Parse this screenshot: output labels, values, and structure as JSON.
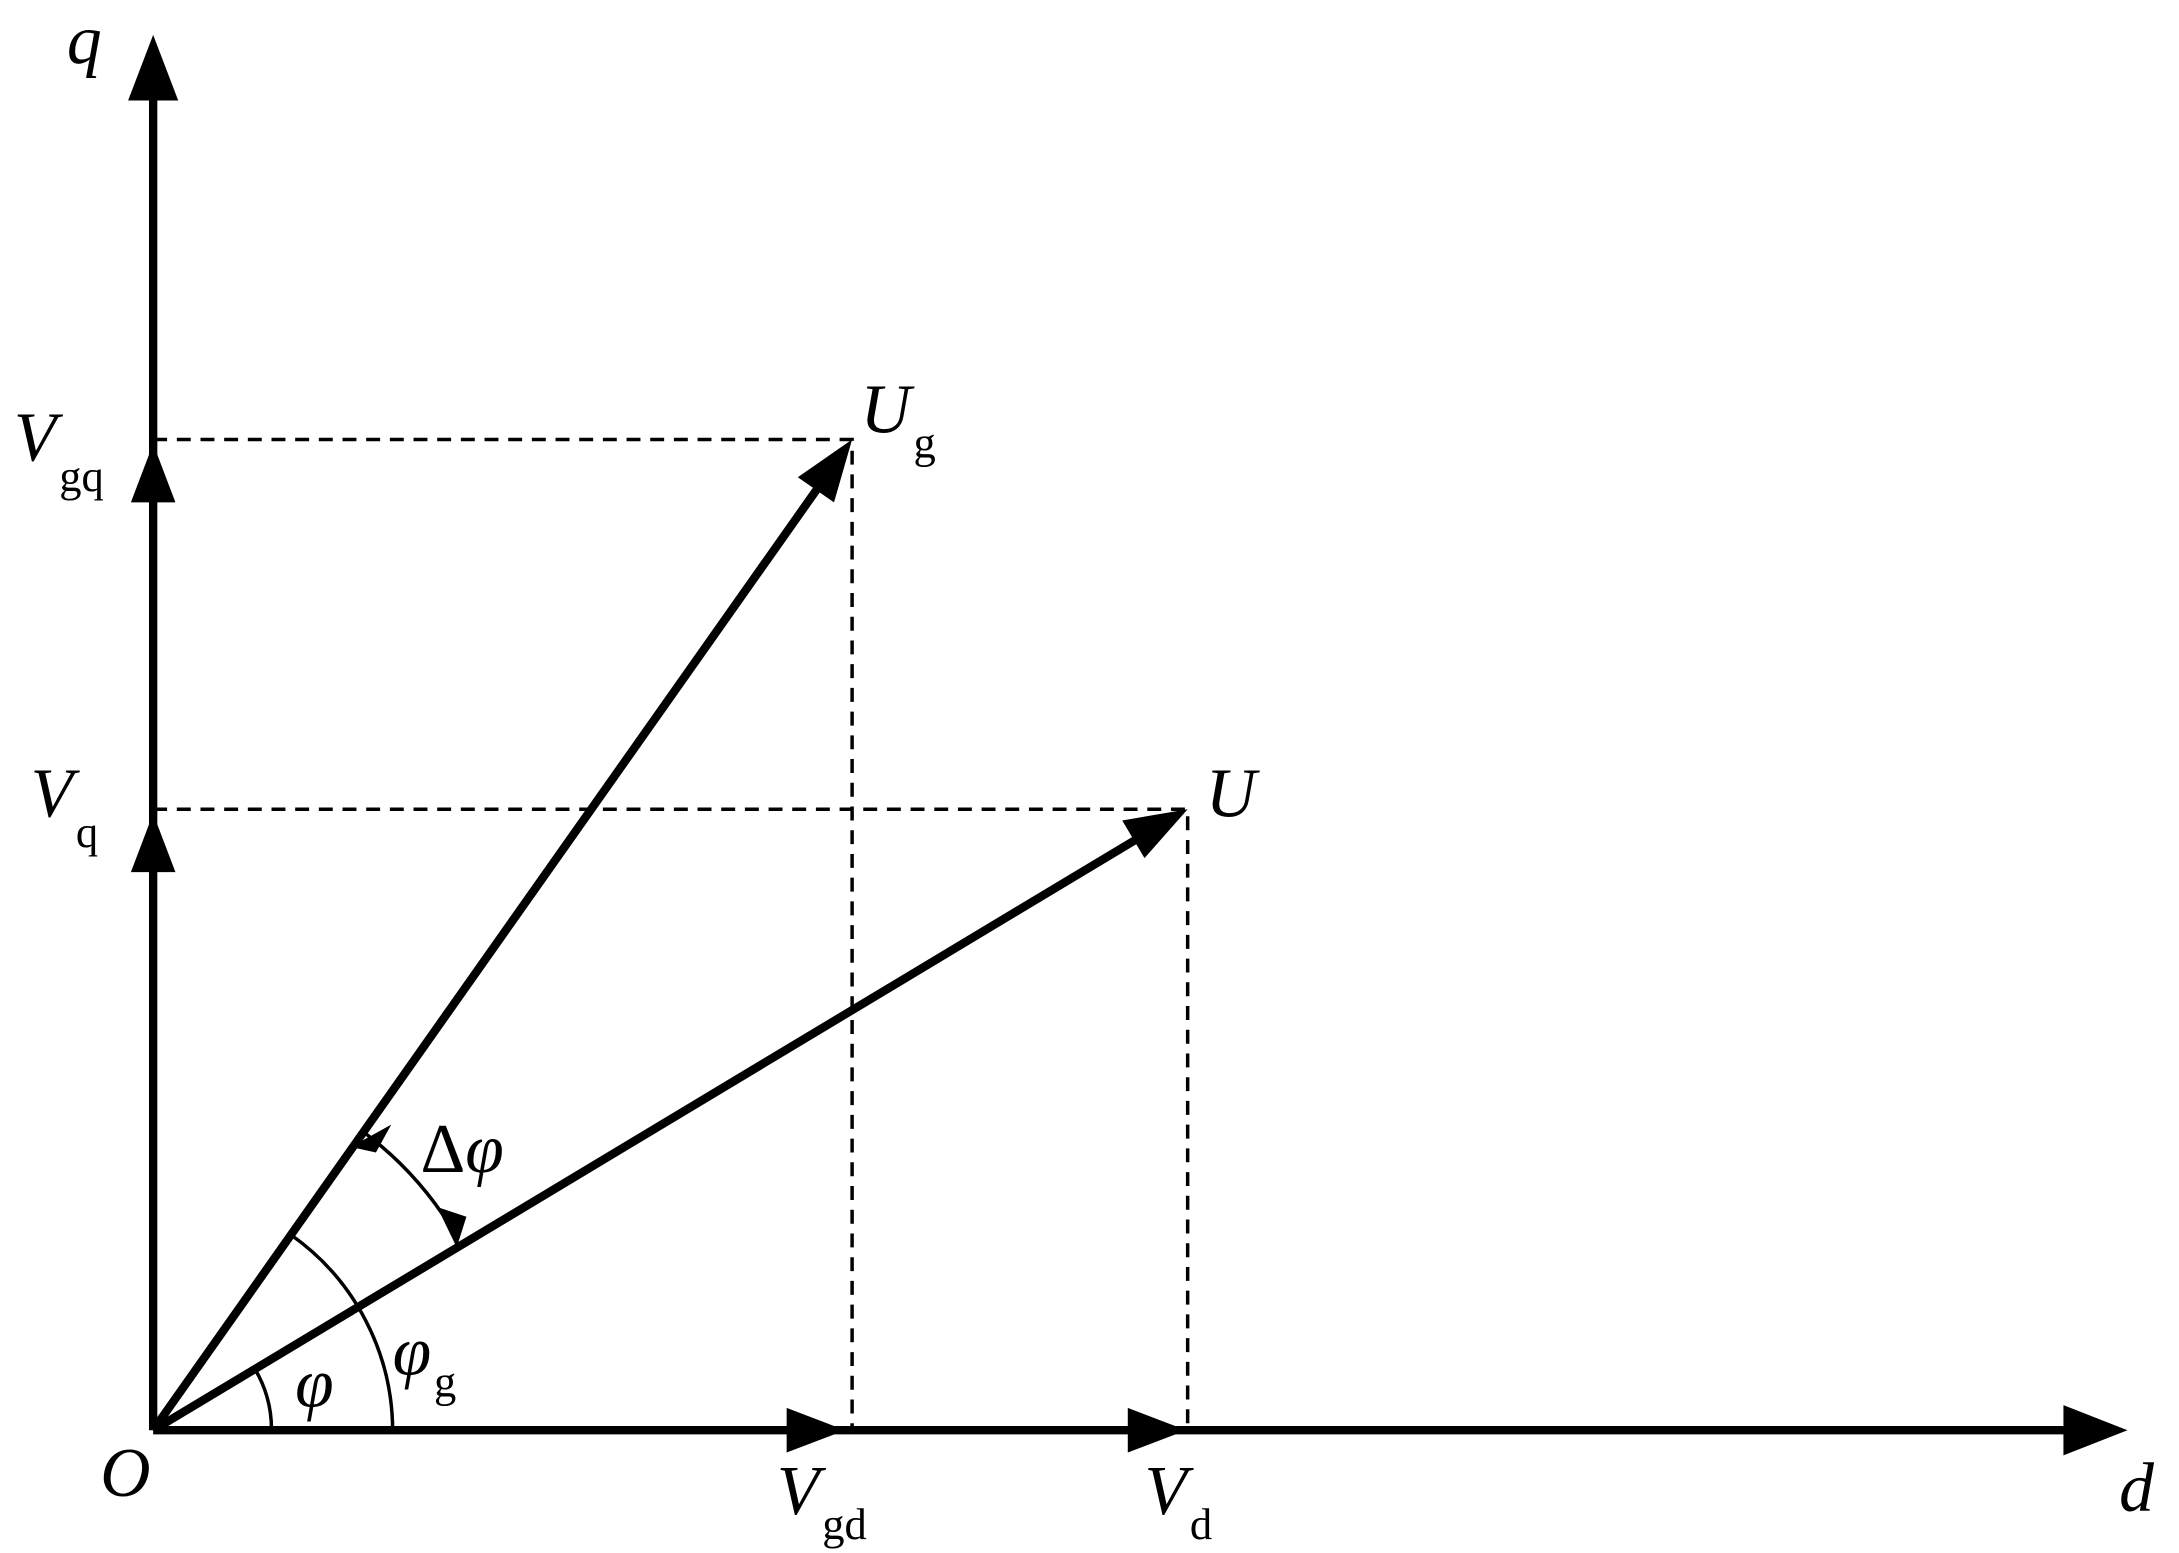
{
  "diagram": {
    "axes": {
      "q": "q",
      "d": "d",
      "origin": "O"
    },
    "vectors": [
      {
        "id": "Ug",
        "main": "U",
        "sub": "g"
      },
      {
        "id": "U",
        "main": "U",
        "sub": ""
      }
    ],
    "projections": {
      "Vgq": {
        "main": "V",
        "sub": "gq"
      },
      "Vq": {
        "main": "V",
        "sub": "q"
      },
      "Vgd": {
        "main": "V",
        "sub": "gd"
      },
      "Vd": {
        "main": "V",
        "sub": "d"
      }
    },
    "angles": {
      "phi": {
        "main": "φ",
        "sub": ""
      },
      "phi_g": {
        "main": "φ",
        "sub": "g"
      },
      "delta_phi": {
        "prefix": "Δ",
        "main": "φ"
      }
    },
    "color": "#000000"
  }
}
